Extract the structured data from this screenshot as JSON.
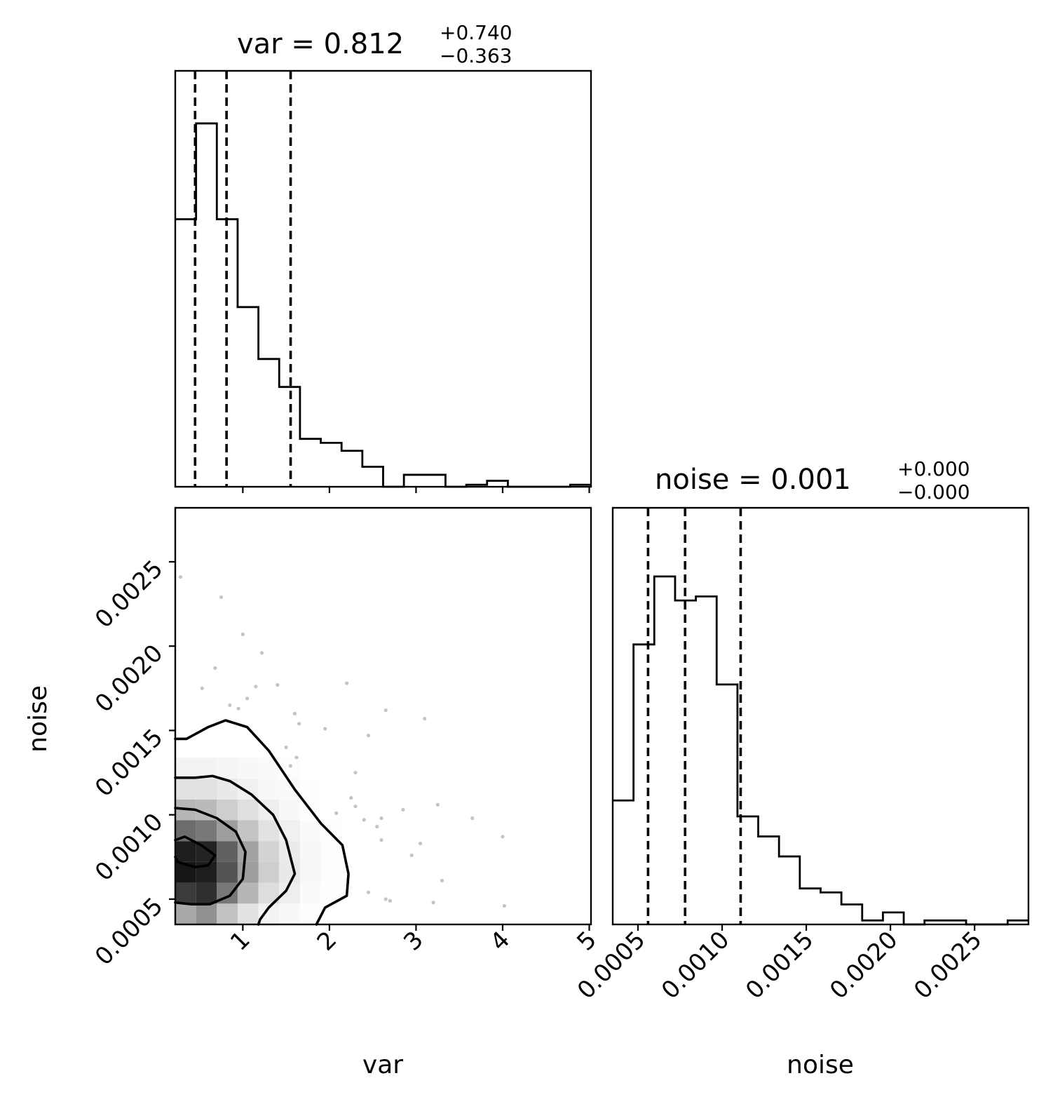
{
  "chart_data": {
    "type": "corner",
    "parameters": [
      "var",
      "noise"
    ],
    "xlabels": [
      "var",
      "noise"
    ],
    "ylabel": "noise",
    "titles": [
      {
        "param": "var",
        "prefix": "var = ",
        "median": "0.812",
        "plus": "+0.740",
        "minus": "−0.363"
      },
      {
        "param": "noise",
        "prefix": "noise = ",
        "median": "0.001",
        "plus": "+0.000",
        "minus": "−0.000"
      }
    ],
    "ranges": {
      "var": [
        0.22,
        5.02
      ],
      "noise": [
        0.00035,
        0.00282
      ]
    },
    "ticks": {
      "var": {
        "values": [
          1,
          2,
          3,
          4,
          5
        ],
        "labels": [
          "1",
          "2",
          "3",
          "4",
          "5"
        ]
      },
      "noise": {
        "values": [
          0.0005,
          0.001,
          0.0015,
          0.002,
          0.0025
        ],
        "labels": [
          "0.0005",
          "0.0010",
          "0.0015",
          "0.0020",
          "0.0025"
        ]
      }
    },
    "quantiles": {
      "var": [
        0.449,
        0.812,
        1.552
      ],
      "noise": [
        0.00056,
        0.00078,
        0.00111
      ]
    },
    "hist_var": {
      "bin_start": 0.22,
      "bin_width": 0.24,
      "counts": [
        0.67,
        0.91,
        0.67,
        0.45,
        0.32,
        0.25,
        0.12,
        0.11,
        0.09,
        0.05,
        0.0,
        0.03,
        0.03,
        0.0,
        0.005,
        0.015,
        0.0,
        0.0,
        0.0,
        0.005
      ],
      "ymax": 1.0
    },
    "hist_noise": {
      "bin_start": 0.00035,
      "bin_width": 0.0001235,
      "counts": [
        0.31,
        0.7,
        0.87,
        0.81,
        0.82,
        0.6,
        0.27,
        0.22,
        0.17,
        0.09,
        0.08,
        0.05,
        0.01,
        0.03,
        0.0,
        0.01,
        0.01,
        0.0,
        0.0,
        0.01
      ],
      "ymax": 1.0
    },
    "density_2d": {
      "var_edges_start": 0.22,
      "var_bin": 0.24,
      "noise_edges_start": 0.00035,
      "noise_bin": 0.0001235,
      "grid": [
        [
          0.35,
          0.45,
          0.25,
          0.12,
          0.05,
          0.03,
          0.01,
          0.0,
          0.0,
          0.0
        ],
        [
          0.8,
          0.85,
          0.55,
          0.3,
          0.14,
          0.07,
          0.02,
          0.01,
          0.0,
          0.0
        ],
        [
          0.95,
          0.92,
          0.7,
          0.4,
          0.2,
          0.09,
          0.03,
          0.01,
          0.0,
          0.0
        ],
        [
          0.92,
          0.9,
          0.65,
          0.38,
          0.18,
          0.08,
          0.03,
          0.01,
          0.0,
          0.0
        ],
        [
          0.6,
          0.55,
          0.4,
          0.24,
          0.12,
          0.06,
          0.02,
          0.01,
          0.0,
          0.0
        ],
        [
          0.3,
          0.28,
          0.2,
          0.13,
          0.07,
          0.03,
          0.01,
          0.0,
          0.0,
          0.0
        ],
        [
          0.12,
          0.12,
          0.09,
          0.06,
          0.03,
          0.02,
          0.01,
          0.0,
          0.0,
          0.0
        ],
        [
          0.05,
          0.05,
          0.04,
          0.03,
          0.02,
          0.01,
          0.0,
          0.0,
          0.0,
          0.0
        ]
      ]
    },
    "contours": [
      [
        [
          0.22,
          0.00145
        ],
        [
          0.35,
          0.00145
        ],
        [
          0.6,
          0.00152
        ],
        [
          0.8,
          0.00156
        ],
        [
          1.05,
          0.00152
        ],
        [
          1.3,
          0.00138
        ],
        [
          1.6,
          0.00115
        ],
        [
          1.9,
          0.00095
        ],
        [
          2.15,
          0.00082
        ],
        [
          2.22,
          0.00065
        ],
        [
          2.2,
          0.00052
        ],
        [
          1.95,
          0.00045
        ],
        [
          1.85,
          0.00035
        ]
      ],
      [
        [
          0.22,
          0.00122
        ],
        [
          0.45,
          0.00122
        ],
        [
          0.65,
          0.00123
        ],
        [
          0.85,
          0.0012
        ],
        [
          1.1,
          0.00112
        ],
        [
          1.35,
          0.001
        ],
        [
          1.5,
          0.00085
        ],
        [
          1.6,
          0.00065
        ],
        [
          1.5,
          0.00055
        ],
        [
          1.3,
          0.00045
        ],
        [
          1.2,
          0.00038
        ],
        [
          1.18,
          0.00035
        ]
      ],
      [
        [
          0.22,
          0.00104
        ],
        [
          0.45,
          0.00103
        ],
        [
          0.7,
          0.00098
        ],
        [
          0.92,
          0.0009
        ],
        [
          1.03,
          0.00078
        ],
        [
          1.0,
          0.00062
        ],
        [
          0.85,
          0.00052
        ],
        [
          0.62,
          0.00047
        ],
        [
          0.4,
          0.00047
        ],
        [
          0.22,
          0.00048
        ]
      ],
      [
        [
          0.22,
          0.00085
        ],
        [
          0.33,
          0.00087
        ],
        [
          0.52,
          0.00082
        ],
        [
          0.68,
          0.00076
        ],
        [
          0.6,
          0.0007
        ],
        [
          0.45,
          0.00069
        ],
        [
          0.25,
          0.00072
        ],
        [
          0.22,
          0.00075
        ]
      ]
    ],
    "scatter": [
      [
        0.28,
        0.00241
      ],
      [
        0.75,
        0.00229
      ],
      [
        1.0,
        0.00207
      ],
      [
        0.68,
        0.00187
      ],
      [
        1.22,
        0.00196
      ],
      [
        0.53,
        0.00175
      ],
      [
        1.15,
        0.00176
      ],
      [
        1.05,
        0.00169
      ],
      [
        0.95,
        0.00163
      ],
      [
        0.85,
        0.00165
      ],
      [
        1.4,
        0.00177
      ],
      [
        1.6,
        0.0016
      ],
      [
        2.2,
        0.00178
      ],
      [
        2.65,
        0.00162
      ],
      [
        1.65,
        0.00154
      ],
      [
        3.1,
        0.00157
      ],
      [
        1.95,
        0.00151
      ],
      [
        2.45,
        0.00147
      ],
      [
        1.5,
        0.0014
      ],
      [
        1.55,
        0.00129
      ],
      [
        2.3,
        0.00125
      ],
      [
        1.62,
        0.00134
      ],
      [
        2.25,
        0.0011
      ],
      [
        2.6,
        0.00098
      ],
      [
        2.55,
        0.00093
      ],
      [
        2.85,
        0.00103
      ],
      [
        3.25,
        0.00106
      ],
      [
        3.65,
        0.00098
      ],
      [
        4.0,
        0.00087
      ],
      [
        2.6,
        0.00085
      ],
      [
        2.95,
        0.00076
      ],
      [
        3.05,
        0.00083
      ],
      [
        3.3,
        0.00061
      ],
      [
        2.65,
        0.0005
      ],
      [
        2.7,
        0.00049
      ],
      [
        3.2,
        0.00048
      ],
      [
        4.02,
        0.00046
      ],
      [
        2.45,
        0.00054
      ],
      [
        2.4,
        0.00097
      ],
      [
        2.3,
        0.00105
      ],
      [
        2.08,
        0.00101
      ]
    ]
  }
}
